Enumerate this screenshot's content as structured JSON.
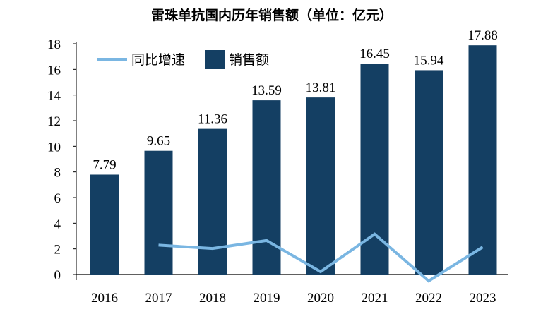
{
  "chart_data": {
    "type": "bar",
    "title": "雷珠单抗国内历年销售额（单位：亿元）",
    "categories": [
      "2016",
      "2017",
      "2018",
      "2019",
      "2020",
      "2021",
      "2022",
      "2023"
    ],
    "ylim": [
      0,
      18
    ],
    "yticks": [
      0,
      2,
      4,
      6,
      8,
      10,
      12,
      14,
      16,
      18
    ],
    "grid": false,
    "legend": "top-left",
    "series": [
      {
        "name": "销售额",
        "type": "bar",
        "color": "#143f63",
        "values": [
          7.79,
          9.65,
          11.36,
          13.59,
          13.81,
          16.45,
          15.94,
          17.88
        ],
        "labels": [
          "7.79",
          "9.65",
          "11.36",
          "13.59",
          "13.81",
          "16.45",
          "15.94",
          "17.88"
        ]
      },
      {
        "name": "同比增速",
        "type": "line",
        "color": "#7ab6e2",
        "values": [
          null,
          2.29,
          2.03,
          2.65,
          0.22,
          3.15,
          -0.5,
          2.14
        ]
      }
    ]
  }
}
